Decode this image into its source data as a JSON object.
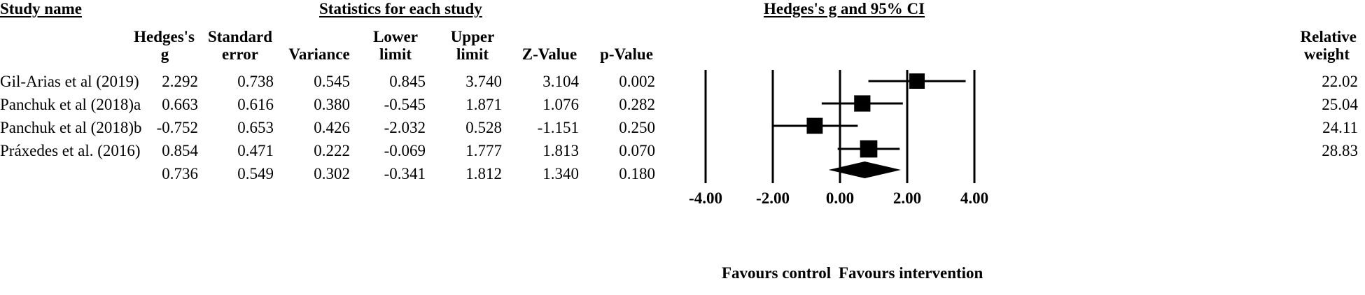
{
  "headers": {
    "study_name": "Study name",
    "statistics": "Statistics for each study",
    "forest_title": "Hedges's g and 95% CI",
    "cols": [
      [
        "Hedges's",
        "g"
      ],
      [
        "Standard",
        "error"
      ],
      [
        "",
        "Variance"
      ],
      [
        "Lower",
        "limit"
      ],
      [
        "Upper",
        "limit"
      ],
      [
        "",
        "Z-Value"
      ],
      [
        "",
        "p-Value"
      ]
    ],
    "weight": [
      "Relative",
      "weight"
    ]
  },
  "rows": [
    {
      "study": "Gil-Arias et al (2019)",
      "g": "2.292",
      "se": "0.738",
      "var": "0.545",
      "lower": "0.845",
      "upper": "3.740",
      "z": "3.104",
      "p": "0.002",
      "weight": "22.02"
    },
    {
      "study": "Panchuk et al (2018)a",
      "g": "0.663",
      "se": "0.616",
      "var": "0.380",
      "lower": "-0.545",
      "upper": "1.871",
      "z": "1.076",
      "p": "0.282",
      "weight": "25.04"
    },
    {
      "study": "Panchuk et al (2018)b",
      "g": "-0.752",
      "se": "0.653",
      "var": "0.426",
      "lower": "-2.032",
      "upper": "0.528",
      "z": "-1.151",
      "p": "0.250",
      "weight": "24.11"
    },
    {
      "study": "Práxedes et al. (2016)",
      "g": "0.854",
      "se": "0.471",
      "var": "0.222",
      "lower": "-0.069",
      "upper": "1.777",
      "z": "1.813",
      "p": "0.070",
      "weight": "28.83"
    }
  ],
  "summary": {
    "study": "",
    "g": "0.736",
    "se": "0.549",
    "var": "0.302",
    "lower": "-0.341",
    "upper": "1.812",
    "z": "1.340",
    "p": "0.180"
  },
  "favours": {
    "left": "Favours control",
    "right": "Favours intervention"
  },
  "chart_data": {
    "type": "forest",
    "title": "Hedges's g and 95% CI",
    "xlim": [
      -4,
      4
    ],
    "xticks": [
      -4,
      -2,
      0,
      2,
      4
    ],
    "tick_labels": [
      "-4.00",
      "-2.00",
      "0.00",
      "2.00",
      "4.00"
    ],
    "studies": [
      "Gil-Arias et al (2019)",
      "Panchuk et al (2018)a",
      "Panchuk et al (2018)b",
      "Práxedes et al. (2016)"
    ],
    "estimates": [
      2.292,
      0.663,
      -0.752,
      0.854
    ],
    "lower": [
      0.845,
      -0.545,
      -2.032,
      -0.069
    ],
    "upper": [
      3.74,
      1.871,
      0.528,
      1.777
    ],
    "weights": [
      22.02,
      25.04,
      24.11,
      28.83
    ],
    "summary": {
      "estimate": 0.736,
      "lower": -0.341,
      "upper": 1.812
    }
  }
}
